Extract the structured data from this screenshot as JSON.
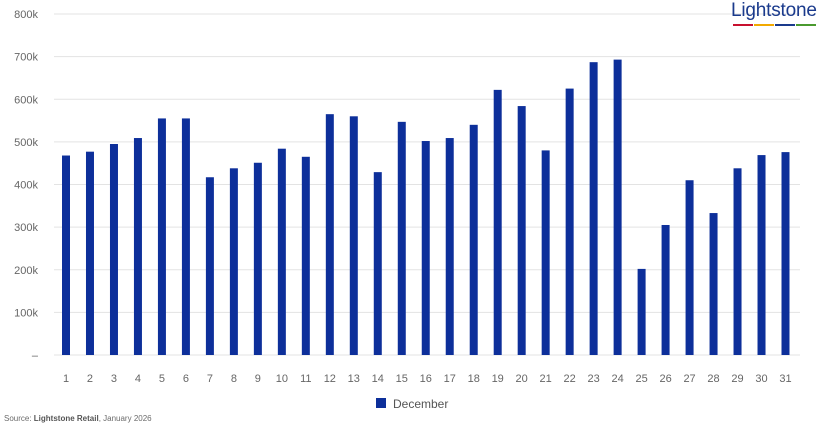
{
  "brand": {
    "name": "Lightstone",
    "bar_colors": [
      "#c8102e",
      "#f2a900",
      "#1a3a8c",
      "#4a9a2f"
    ]
  },
  "source": {
    "prefix": "Source: ",
    "org": "Lightstone Retail",
    "suffix": ", January 2026"
  },
  "chart_data": {
    "type": "bar",
    "title": "",
    "xlabel": "",
    "ylabel": "",
    "bar_color": "#0d2f9a",
    "grid": true,
    "legend_position": "bottom",
    "ylim": [
      0,
      800000
    ],
    "y_ticks": [
      {
        "value": 0,
        "label": "–"
      },
      {
        "value": 100000,
        "label": "100k"
      },
      {
        "value": 200000,
        "label": "200k"
      },
      {
        "value": 300000,
        "label": "300k"
      },
      {
        "value": 400000,
        "label": "400k"
      },
      {
        "value": 500000,
        "label": "500k"
      },
      {
        "value": 600000,
        "label": "600k"
      },
      {
        "value": 700000,
        "label": "700k"
      },
      {
        "value": 800000,
        "label": "800k"
      }
    ],
    "categories": [
      "1",
      "2",
      "3",
      "4",
      "5",
      "6",
      "7",
      "8",
      "9",
      "10",
      "11",
      "12",
      "13",
      "14",
      "15",
      "16",
      "17",
      "18",
      "19",
      "20",
      "21",
      "22",
      "23",
      "24",
      "25",
      "26",
      "27",
      "28",
      "29",
      "30",
      "31"
    ],
    "series": [
      {
        "name": "December",
        "values": [
          468000,
          477000,
          495000,
          509000,
          555000,
          555000,
          417000,
          438000,
          451000,
          484000,
          465000,
          565000,
          560000,
          429000,
          547000,
          502000,
          509000,
          540000,
          622000,
          584000,
          480000,
          625000,
          687000,
          693000,
          202000,
          305000,
          410000,
          333000,
          438000,
          469000,
          476000
        ]
      }
    ]
  }
}
